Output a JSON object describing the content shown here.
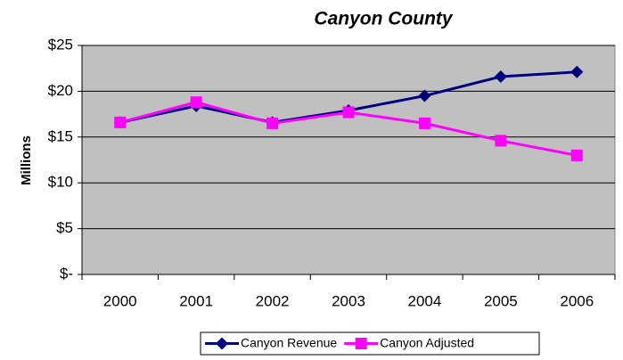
{
  "chart_data": {
    "type": "line",
    "title": "Canyon County",
    "y_label": "Millions",
    "categories": [
      "2000",
      "2001",
      "2002",
      "2003",
      "2004",
      "2005",
      "2006"
    ],
    "series": [
      {
        "name": "Canyon Revenue",
        "color": "#000080",
        "marker": "diamond",
        "values": [
          16.6,
          18.4,
          16.6,
          17.9,
          19.5,
          21.6,
          22.1
        ]
      },
      {
        "name": "Canyon Adjusted",
        "color": "#ff00ff",
        "marker": "square",
        "values": [
          16.6,
          18.8,
          16.5,
          17.7,
          16.5,
          14.6,
          13.0
        ]
      }
    ],
    "ylim": [
      0,
      25
    ],
    "yticks": [
      {
        "value": 0,
        "label": "$-"
      },
      {
        "value": 5,
        "label": "$5"
      },
      {
        "value": 10,
        "label": "$10"
      },
      {
        "value": 15,
        "label": "$15"
      },
      {
        "value": 20,
        "label": "$20"
      },
      {
        "value": 25,
        "label": "$25"
      }
    ],
    "grid": true,
    "legend": "bottom",
    "plot_background": "#c0c0c0"
  }
}
